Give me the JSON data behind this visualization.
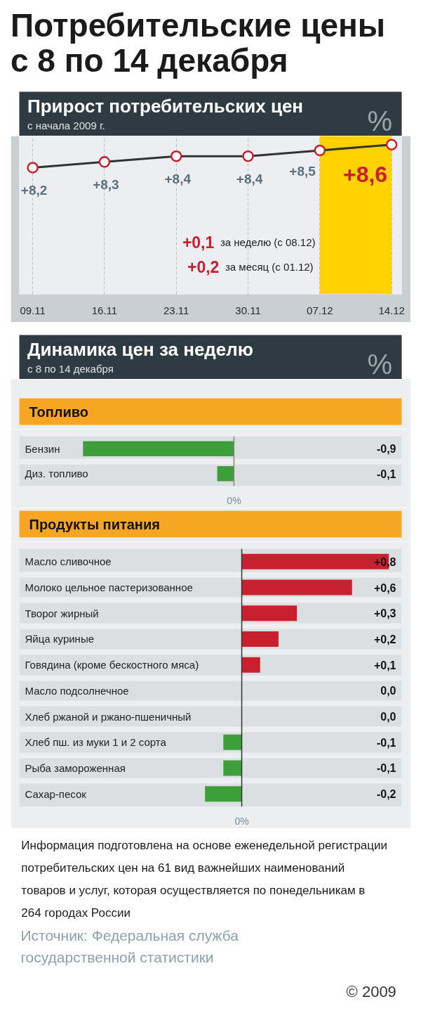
{
  "chart_data": [
    {
      "type": "other",
      "title": "Потребительские цены с 8 по 14 декабря"
    },
    {
      "type": "line",
      "title": "Прирост потребительских цен",
      "subtitle": "с начала 2009 г.",
      "ylabel": "%",
      "categories": [
        "09.11",
        "16.11",
        "23.11",
        "30.11",
        "07.12",
        "14.12"
      ],
      "values": [
        8.2,
        8.3,
        8.4,
        8.4,
        8.5,
        8.6
      ],
      "value_labels": [
        "+8,2",
        "+8,3",
        "+8,4",
        "+8,4",
        "+8,5",
        "+8,6"
      ],
      "color": "#333333",
      "colors": [
        "#c8202f",
        "#c8202f",
        "#c8202f",
        "#c8202f",
        "#c8202f",
        "#c8202f"
      ],
      "marker": "circle",
      "line_style": "solid",
      "ylim": [
        6.0,
        8.75
      ],
      "tick_labels": "x",
      "grid": "x",
      "bands": [
        {
          "axis": "x",
          "from": "07.12",
          "to": "14.12",
          "color": "#ffd200"
        }
      ],
      "annotations": [
        "+0,1 за неделю (с 08.12)",
        "+0,2 за месяц (с 01.12)"
      ]
    },
    {
      "type": "bar",
      "orientation": "horizontal",
      "title": "Динамика цен за неделю",
      "subtitle": "с 8 по 14 декабря",
      "xlabel": "%",
      "ylabel": "Топливо",
      "categories": [
        "Бензин",
        "Диз. топливо"
      ],
      "values": [
        -0.9,
        -0.1
      ],
      "value_labels": [
        "-0,9",
        "-0,1"
      ],
      "colors": [
        "#3d9e3a",
        "#3d9e3a"
      ],
      "xlim": [
        -1.28,
        1.0
      ],
      "ref_lines": [
        {
          "axis": "x",
          "value": 0,
          "color": "#8a8a8a"
        }
      ],
      "annotations": [
        "0%"
      ],
      "grid": "y"
    },
    {
      "type": "bar",
      "orientation": "horizontal",
      "ylabel": "Продукты питания",
      "categories": [
        "Масло сливочное",
        "Молоко цельное пастеризованное",
        "Творог жирный",
        "Яйца куриные",
        "Говядина (кроме бескостного мяса)",
        "Масло подсолнечное",
        "Хлеб ржаной и ржано-пшеничный",
        "Хлеб пш. из муки 1 и 2 сорта",
        "Рыба замороженная",
        "Сахар-песок"
      ],
      "values": [
        0.8,
        0.6,
        0.3,
        0.2,
        0.1,
        0.0,
        0.0,
        -0.1,
        -0.1,
        -0.2
      ],
      "value_labels": [
        "+0,8",
        "+0,6",
        "+0,3",
        "+0,2",
        "+0,1",
        "0,0",
        "0,0",
        "-0,1",
        "-0,1",
        "-0,2"
      ],
      "colors": [
        "#c8202f",
        "#c8202f",
        "#c8202f",
        "#c8202f",
        "#c8202f",
        "#c8202f",
        "#c8202f",
        "#3d9e3a",
        "#3d9e3a",
        "#3d9e3a"
      ],
      "xlim": [
        -1.21,
        0.87
      ],
      "ref_lines": [
        {
          "axis": "x",
          "value": 0,
          "color": "#333333"
        }
      ],
      "annotations": [
        "0%"
      ],
      "grid": "y"
    },
    {
      "type": "other",
      "annotations": [
        "Информация подготовлена на основе еженедельной регистрации потребительских цен на 61 вид важнейших наименований товаров и услуг, которая осуществляется по понедельникам в 264 городах России",
        "Источник: Федеральная служба государственной статистики",
        "© 2009"
      ]
    }
  ]
}
